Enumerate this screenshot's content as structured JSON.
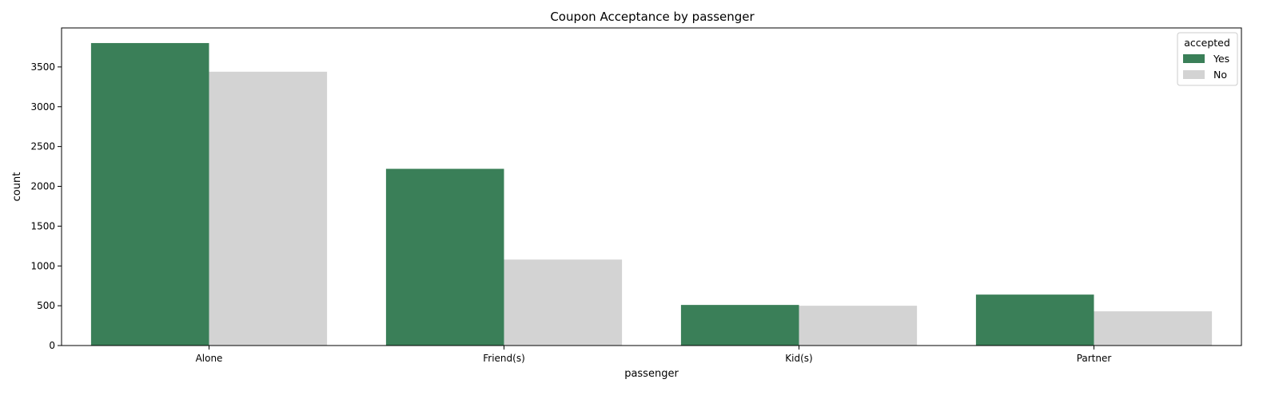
{
  "chart_data": {
    "type": "bar",
    "title": "Coupon Acceptance by passenger",
    "xlabel": "passenger",
    "ylabel": "count",
    "categories": [
      "Alone",
      "Friend(s)",
      "Kid(s)",
      "Partner"
    ],
    "series": [
      {
        "name": "Yes",
        "color": "#3a7f58",
        "values": [
          3800,
          2220,
          510,
          640
        ]
      },
      {
        "name": "No",
        "color": "#d3d3d3",
        "values": [
          3440,
          1080,
          500,
          430
        ]
      }
    ],
    "ylim": [
      0,
      3990
    ],
    "yticks": [
      0,
      500,
      1000,
      1500,
      2000,
      2500,
      3000,
      3500
    ],
    "legend": {
      "title": "accepted",
      "placement": "top-right"
    },
    "grid": false
  }
}
